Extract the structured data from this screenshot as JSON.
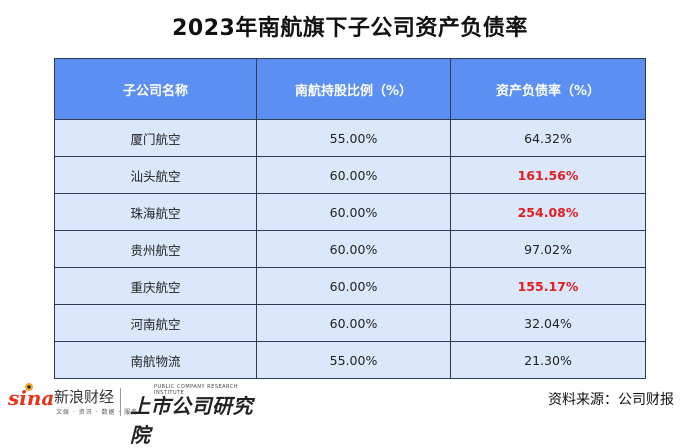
{
  "title": "2023年南航旗下子公司资产负债率",
  "table": {
    "headers": [
      "子公司名称",
      "南航持股比例（%）",
      "资产负债率（%）"
    ],
    "rows": [
      {
        "name": "厦门航空",
        "share": "55.00%",
        "ratio": "64.32%",
        "highlight": false
      },
      {
        "name": "汕头航空",
        "share": "60.00%",
        "ratio": "161.56%",
        "highlight": true
      },
      {
        "name": "珠海航空",
        "share": "60.00%",
        "ratio": "254.08%",
        "highlight": true
      },
      {
        "name": "贵州航空",
        "share": "60.00%",
        "ratio": "97.02%",
        "highlight": false
      },
      {
        "name": "重庆航空",
        "share": "60.00%",
        "ratio": "155.17%",
        "highlight": true
      },
      {
        "name": "河南航空",
        "share": "60.00%",
        "ratio": "32.04%",
        "highlight": false
      },
      {
        "name": "南航物流",
        "share": "55.00%",
        "ratio": "21.30%",
        "highlight": false
      }
    ]
  },
  "colors": {
    "header_bg": "#5b8ff2",
    "cell_bg": "#dbe7fb",
    "highlight_text": "#e02020",
    "border": "#2f3b52"
  },
  "footer": {
    "sina_logo_text": "sina",
    "sina_name": "新浪财经",
    "sina_tags": "文娱 · 资讯 · 数据 · 服务",
    "institute_en": "PUBLIC COMPANY RESEARCH INSTITUTE",
    "institute_cn": "上市公司研究院",
    "source": "资料来源：公司财报"
  }
}
